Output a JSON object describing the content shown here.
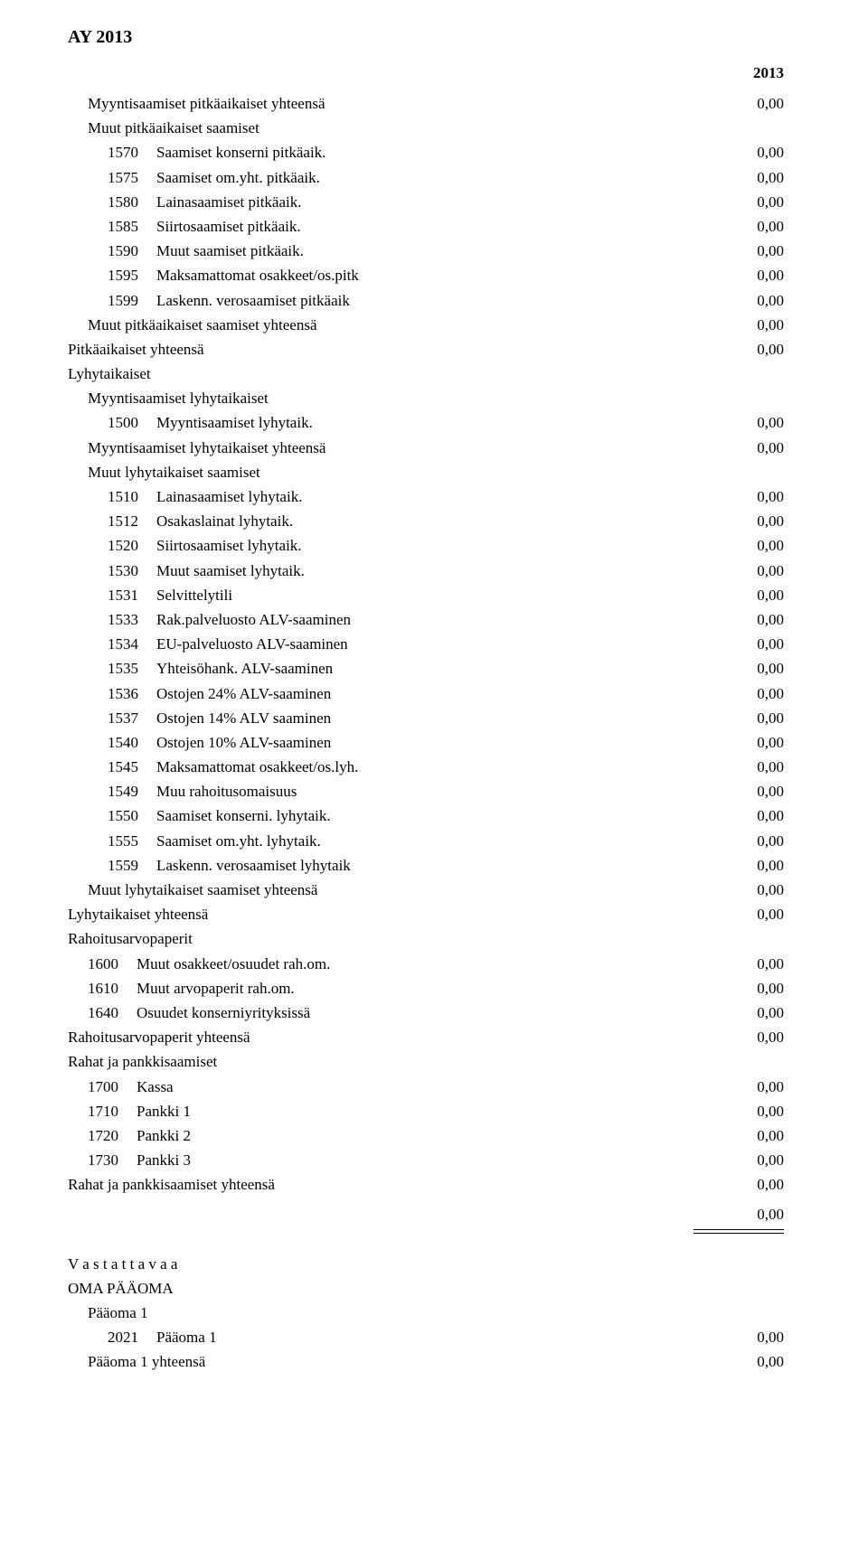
{
  "header": "AY 2013",
  "year": "2013",
  "zero": "0,00",
  "lines": [
    {
      "indent": 1,
      "label": "Myyntisaamiset pitkäaikaiset yhteensä",
      "val": "0,00"
    },
    {
      "indent": 1,
      "label": "Muut pitkäaikaiset saamiset"
    },
    {
      "indent": 2,
      "code": "1570",
      "label": "Saamiset konserni pitkäaik.",
      "val": "0,00"
    },
    {
      "indent": 2,
      "code": "1575",
      "label": "Saamiset om.yht. pitkäaik.",
      "val": "0,00"
    },
    {
      "indent": 2,
      "code": "1580",
      "label": "Lainasaamiset pitkäaik.",
      "val": "0,00"
    },
    {
      "indent": 2,
      "code": "1585",
      "label": "Siirtosaamiset pitkäaik.",
      "val": "0,00"
    },
    {
      "indent": 2,
      "code": "1590",
      "label": "Muut saamiset pitkäaik.",
      "val": "0,00"
    },
    {
      "indent": 2,
      "code": "1595",
      "label": "Maksamattomat osakkeet/os.pitk",
      "val": "0,00"
    },
    {
      "indent": 2,
      "code": "1599",
      "label": "Laskenn. verosaamiset pitkäaik",
      "val": "0,00"
    },
    {
      "indent": 1,
      "label": "Muut pitkäaikaiset saamiset yhteensä",
      "val": "0,00"
    },
    {
      "indent": 0,
      "label": "Pitkäaikaiset yhteensä",
      "val": "0,00"
    },
    {
      "indent": 0,
      "label": "Lyhytaikaiset"
    },
    {
      "indent": 1,
      "label": "Myyntisaamiset lyhytaikaiset"
    },
    {
      "indent": 2,
      "code": "1500",
      "label": "Myyntisaamiset lyhytaik.",
      "val": "0,00"
    },
    {
      "indent": 1,
      "label": "Myyntisaamiset lyhytaikaiset yhteensä",
      "val": "0,00"
    },
    {
      "indent": 1,
      "label": "Muut lyhytaikaiset saamiset"
    },
    {
      "indent": 2,
      "code": "1510",
      "label": "Lainasaamiset lyhytaik.",
      "val": "0,00"
    },
    {
      "indent": 2,
      "code": "1512",
      "label": "Osakaslainat lyhytaik.",
      "val": "0,00"
    },
    {
      "indent": 2,
      "code": "1520",
      "label": "Siirtosaamiset lyhytaik.",
      "val": "0,00"
    },
    {
      "indent": 2,
      "code": "1530",
      "label": "Muut saamiset lyhytaik.",
      "val": "0,00"
    },
    {
      "indent": 2,
      "code": "1531",
      "label": "Selvittelytili",
      "val": "0,00"
    },
    {
      "indent": 2,
      "code": "1533",
      "label": "Rak.palveluosto ALV-saaminen",
      "val": "0,00"
    },
    {
      "indent": 2,
      "code": "1534",
      "label": "EU-palveluosto ALV-saaminen",
      "val": "0,00"
    },
    {
      "indent": 2,
      "code": "1535",
      "label": "Yhteisöhank. ALV-saaminen",
      "val": "0,00"
    },
    {
      "indent": 2,
      "code": "1536",
      "label": "Ostojen 24% ALV-saaminen",
      "val": "0,00"
    },
    {
      "indent": 2,
      "code": "1537",
      "label": "Ostojen 14% ALV saaminen",
      "val": "0,00"
    },
    {
      "indent": 2,
      "code": "1540",
      "label": "Ostojen 10% ALV-saaminen",
      "val": "0,00"
    },
    {
      "indent": 2,
      "code": "1545",
      "label": "Maksamattomat osakkeet/os.lyh.",
      "val": "0,00"
    },
    {
      "indent": 2,
      "code": "1549",
      "label": "Muu rahoitusomaisuus",
      "val": "0,00"
    },
    {
      "indent": 2,
      "code": "1550",
      "label": "Saamiset konserni. lyhytaik.",
      "val": "0,00"
    },
    {
      "indent": 2,
      "code": "1555",
      "label": "Saamiset om.yht. lyhytaik.",
      "val": "0,00"
    },
    {
      "indent": 2,
      "code": "1559",
      "label": "Laskenn. verosaamiset lyhytaik",
      "val": "0,00"
    },
    {
      "indent": 1,
      "label": "Muut lyhytaikaiset saamiset yhteensä",
      "val": "0,00"
    },
    {
      "indent": 0,
      "label": "Lyhytaikaiset yhteensä",
      "val": "0,00"
    },
    {
      "indent": 0,
      "label": "Rahoitusarvopaperit"
    },
    {
      "indent": 1,
      "code": "1600",
      "label": "Muut osakkeet/osuudet rah.om.",
      "val": "0,00"
    },
    {
      "indent": 1,
      "code": "1610",
      "label": "Muut arvopaperit rah.om.",
      "val": "0,00"
    },
    {
      "indent": 1,
      "code": "1640",
      "label": "Osuudet konserniyrityksissä",
      "val": "0,00"
    },
    {
      "indent": 0,
      "label": "Rahoitusarvopaperit yhteensä",
      "val": "0,00"
    },
    {
      "indent": 0,
      "label": "Rahat ja pankkisaamiset"
    },
    {
      "indent": 1,
      "code": "1700",
      "label": "Kassa",
      "val": "0,00"
    },
    {
      "indent": 1,
      "code": "1710",
      "label": "Pankki 1",
      "val": "0,00"
    },
    {
      "indent": 1,
      "code": "1720",
      "label": "Pankki 2",
      "val": "0,00"
    },
    {
      "indent": 1,
      "code": "1730",
      "label": "Pankki 3",
      "val": "0,00"
    },
    {
      "indent": 0,
      "label": "Rahat ja pankkisaamiset yhteensä",
      "val": "0,00"
    }
  ],
  "footer": {
    "vastattavaa": "V a s t a t t a v a a",
    "oma_paaoma": "OMA PÄÄOMA",
    "paaoma1_header": "Pääoma 1",
    "paaoma1_code": "2021",
    "paaoma1_label": "Pääoma 1",
    "paaoma1_val": "0,00",
    "paaoma1_total_label": "Pääoma 1 yhteensä",
    "paaoma1_total_val": "0,00"
  }
}
